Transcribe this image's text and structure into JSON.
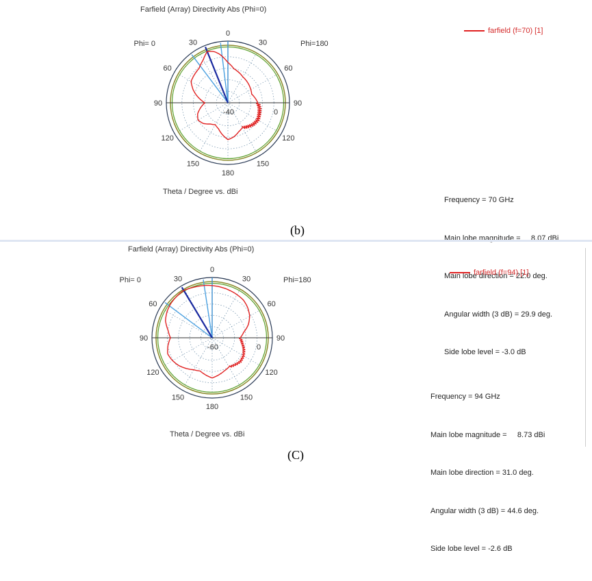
{
  "captions": [
    "(b)",
    "(C)"
  ],
  "chart_data": [
    {
      "type": "polar",
      "title": "Farfield (Array) Directivity Abs (Phi=0)",
      "xlabel": "Theta / Degree vs. dBi",
      "phi_left": "Phi=  0",
      "phi_right": "Phi=180",
      "angle_labels": [
        "0",
        "30",
        "60",
        "90",
        "120",
        "150",
        "180",
        "150",
        "120",
        "90",
        "60",
        "30"
      ],
      "radial_labels": [
        "-40",
        "0"
      ],
      "rlim": [
        -40,
        10
      ],
      "series": [
        {
          "name": "farfield (f=70) [1]",
          "color": "#e02020"
        }
      ],
      "info": [
        {
          "label": "Frequency = ",
          "value": "70 GHz"
        },
        {
          "label": "Main lobe magnitude = ",
          "value": "8.07 dBi"
        },
        {
          "label": "Main lobe direction = ",
          "value": "22.0 deg."
        },
        {
          "label": "Angular width (3 dB) = ",
          "value": "29.9 deg."
        },
        {
          "label": "Side lobe level = ",
          "value": "-3.0 dB"
        }
      ],
      "main_lobe_direction": 22.0,
      "angular_width": 29.9,
      "pattern": {
        "theta": [
          -180,
          -170,
          -160,
          -150,
          -140,
          -130,
          -120,
          -110,
          -100,
          -90,
          -80,
          -70,
          -60,
          -50,
          -40,
          -30,
          -22,
          -15,
          -10,
          0,
          10,
          20,
          30,
          40,
          50,
          60,
          70,
          80,
          90,
          100,
          110,
          120,
          130,
          140,
          150,
          160,
          170,
          180
        ],
        "gain": [
          -8,
          -12,
          -16,
          -18,
          -16,
          -12,
          -10,
          -12,
          -16,
          -20,
          -14,
          -8,
          -3,
          -2,
          -1,
          3,
          8.07,
          6,
          3,
          -5,
          -10,
          -12,
          -14,
          -15,
          -16,
          -17,
          -18,
          -16,
          -14,
          -12,
          -11,
          -10,
          -11,
          -13,
          -15,
          -13,
          -10,
          -8
        ]
      }
    },
    {
      "type": "polar",
      "title": "Farfield (Array) Directivity Abs (Phi=0)",
      "xlabel": "Theta / Degree vs. dBi",
      "phi_left": "Phi=  0",
      "phi_right": "Phi=180",
      "angle_labels": [
        "0",
        "30",
        "60",
        "90",
        "120",
        "150",
        "180",
        "150",
        "120",
        "90",
        "60",
        "30"
      ],
      "radial_labels": [
        "-60",
        "0"
      ],
      "rlim": [
        -60,
        10
      ],
      "series": [
        {
          "name": "farfield (f=94) [1]",
          "color": "#e02020"
        }
      ],
      "info": [
        {
          "label": "Frequency = ",
          "value": "94 GHz"
        },
        {
          "label": "Main lobe magnitude = ",
          "value": "8.73 dBi"
        },
        {
          "label": "Main lobe direction = ",
          "value": "31.0 deg."
        },
        {
          "label": "Angular width (3 dB) = ",
          "value": "44.6 deg."
        },
        {
          "label": "Side lobe level = ",
          "value": "-2.6 dB"
        }
      ],
      "main_lobe_direction": 31.0,
      "angular_width": 44.6,
      "pattern": {
        "theta": [
          -180,
          -170,
          -160,
          -150,
          -140,
          -130,
          -120,
          -110,
          -100,
          -90,
          -80,
          -70,
          -60,
          -50,
          -40,
          -31,
          -20,
          -10,
          0,
          10,
          20,
          30,
          40,
          50,
          60,
          70,
          80,
          90,
          100,
          110,
          120,
          130,
          140,
          150,
          160,
          170,
          180
        ],
        "gain": [
          -10,
          -13,
          -16,
          -14,
          -10,
          -6,
          -3,
          -1,
          -4,
          -8,
          -4,
          2,
          5,
          7,
          8,
          8.73,
          7,
          6,
          5,
          4,
          3,
          2,
          1,
          -2,
          -6,
          -12,
          -20,
          -25,
          -22,
          -18,
          -15,
          -14,
          -16,
          -18,
          -16,
          -13,
          -10
        ]
      }
    }
  ]
}
